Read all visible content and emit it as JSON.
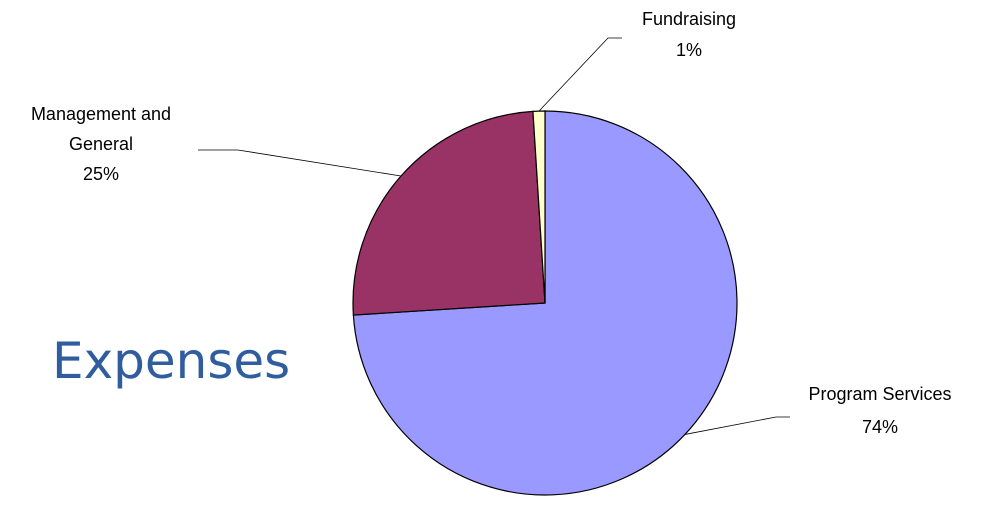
{
  "chart_data": {
    "type": "pie",
    "title": "Expenses",
    "slices": [
      {
        "label": "Program Services",
        "value": 74,
        "pct_label": "74%",
        "color": "#9999ff"
      },
      {
        "label": "Management and General",
        "value": 25,
        "pct_label": "25%",
        "color": "#993366"
      },
      {
        "label": "Fundraising",
        "value": 1,
        "pct_label": "1%",
        "color": "#ffffcc"
      }
    ],
    "label_lines": {
      "program": [
        "Program Services",
        "74%"
      ],
      "management": [
        "Management and",
        "General",
        "25%"
      ],
      "fundraising": [
        "Fundraising",
        "1%"
      ]
    },
    "legend": "none",
    "start_angle": "12 o'clock",
    "direction": "clockwise",
    "border_color": "#000000"
  }
}
